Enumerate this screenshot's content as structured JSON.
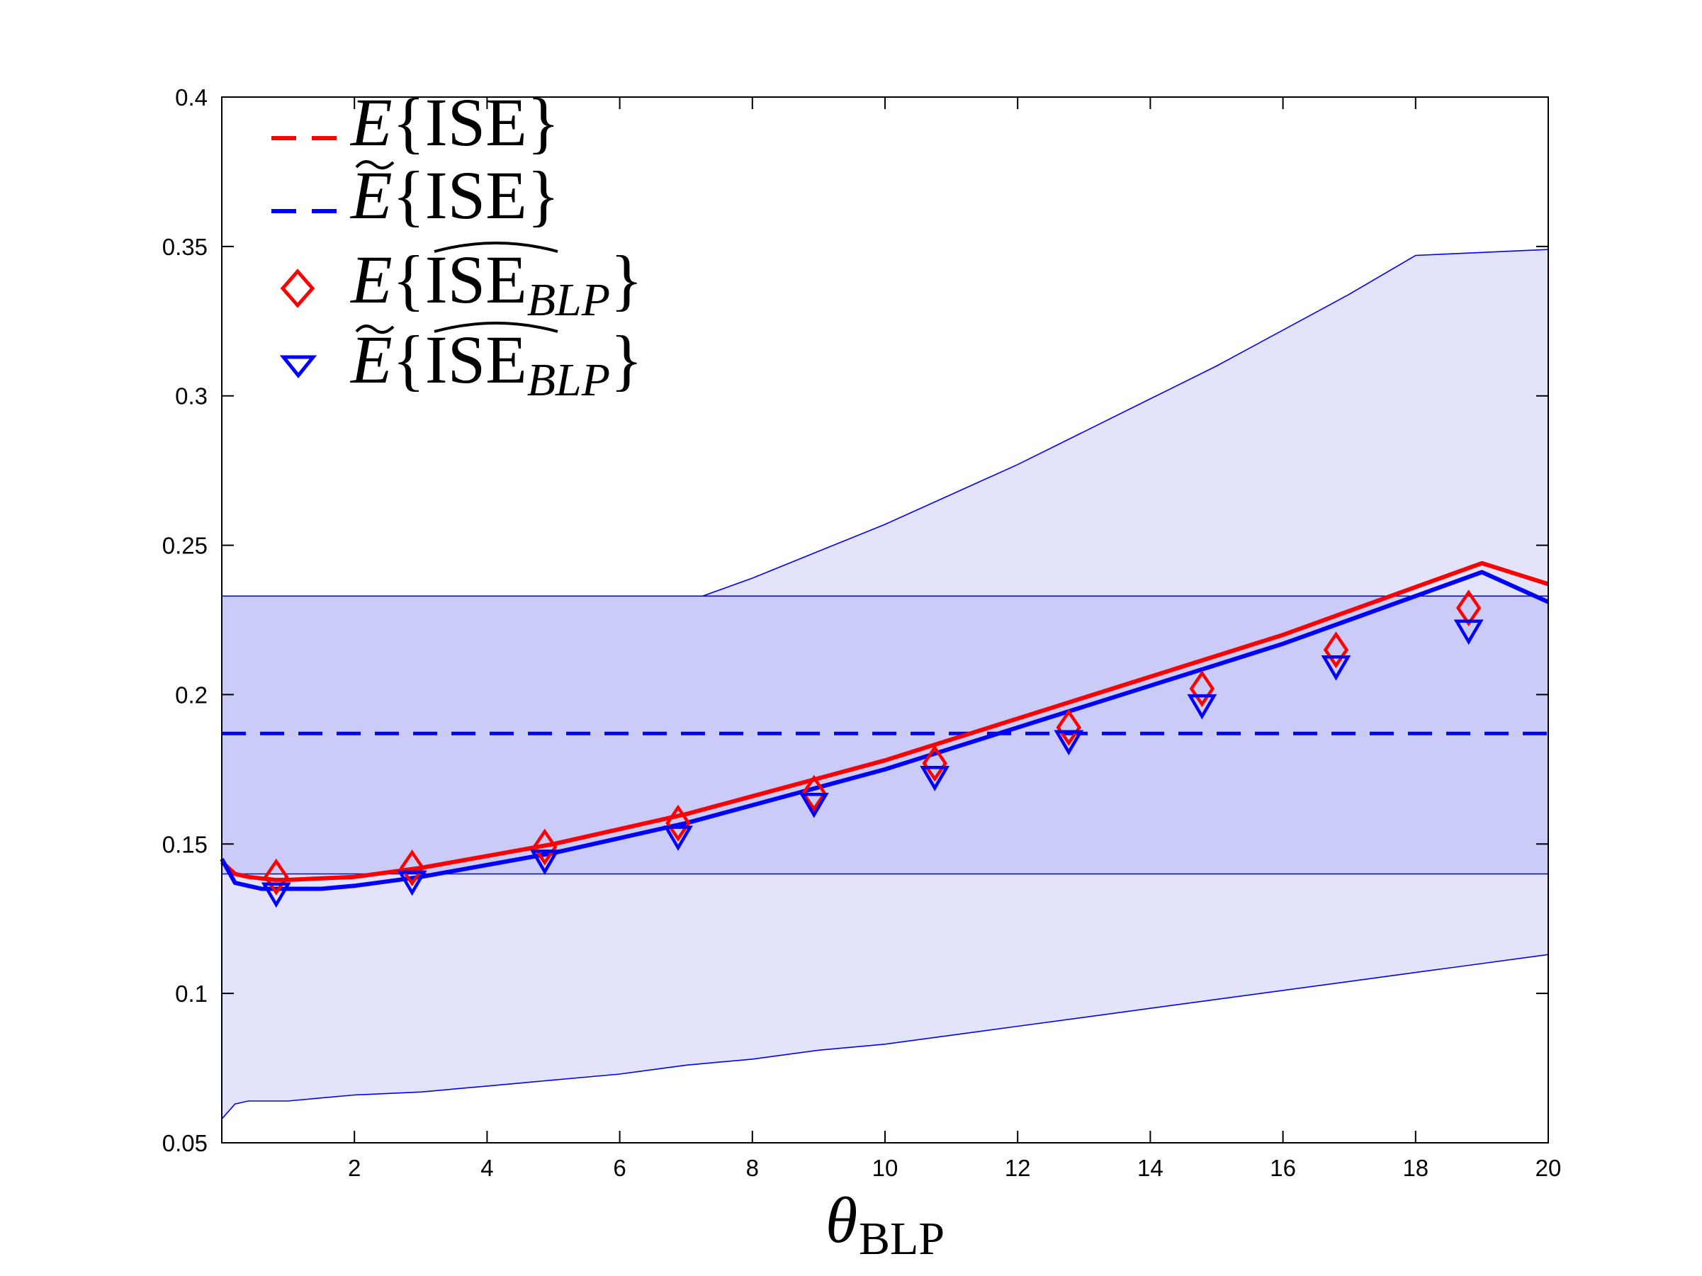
{
  "chart_data": {
    "type": "line",
    "title": "",
    "xlabel": {
      "symbol": "θ",
      "subscript": "BLP"
    },
    "ylabel": "",
    "xlim": [
      0,
      20
    ],
    "ylim": [
      0.05,
      0.4
    ],
    "xticks": [
      "2",
      "4",
      "6",
      "8",
      "10",
      "12",
      "14",
      "16",
      "18",
      "20"
    ],
    "yticks": [
      "0.05",
      "0.1",
      "0.15",
      "0.2",
      "0.25",
      "0.3",
      "0.35",
      "0.4"
    ],
    "grid": false,
    "legend_position": "top-left",
    "legend": [
      {
        "name": "E{ISE}",
        "style": "dashed-line",
        "color": "#ff0000",
        "letter": "E",
        "body": "ISE",
        "sub": "",
        "tilde": false,
        "hat": false
      },
      {
        "name": "Ẽ{ISE}",
        "style": "dashed-line",
        "color": "#0000ff",
        "letter": "E",
        "body": "ISE",
        "sub": "",
        "tilde": true,
        "hat": false
      },
      {
        "name": "E{ÎSE_BLP}",
        "style": "diamond-marker",
        "color": "#ff0000",
        "letter": "E",
        "body": "ISE",
        "sub": "BLP",
        "tilde": false,
        "hat": true
      },
      {
        "name": "Ẽ{ÎSE_BLP}",
        "style": "triangle-marker",
        "color": "#0000ff",
        "letter": "E",
        "body": "ISE",
        "sub": "BLP",
        "tilde": true,
        "hat": true
      }
    ],
    "bands": [
      {
        "name": "outer-band",
        "color": "#e3e3fb",
        "x": [
          0.0,
          0.2,
          0.4,
          0.6,
          0.8,
          1.0,
          1.5,
          2,
          3,
          4,
          5,
          6,
          7,
          8,
          9,
          10,
          11,
          12,
          13,
          14,
          15,
          16,
          17,
          18,
          19,
          20
        ],
        "upper": [
          0.233,
          0.21,
          0.207,
          0.206,
          0.205,
          0.205,
          0.205,
          0.206,
          0.209,
          0.213,
          0.218,
          0.224,
          0.231,
          0.239,
          0.248,
          0.257,
          0.267,
          0.277,
          0.288,
          0.299,
          0.31,
          0.322,
          0.334,
          0.347,
          0.348,
          0.349
        ],
        "lower": [
          0.058,
          0.063,
          0.064,
          0.064,
          0.064,
          0.064,
          0.065,
          0.066,
          0.067,
          0.069,
          0.071,
          0.073,
          0.076,
          0.078,
          0.081,
          0.083,
          0.086,
          0.089,
          0.092,
          0.095,
          0.098,
          0.101,
          0.104,
          0.107,
          0.11,
          0.113
        ]
      },
      {
        "name": "inner-band",
        "color": "#cbcbf7",
        "x": [
          0,
          20
        ],
        "upper": [
          0.233,
          0.233
        ],
        "lower": [
          0.14,
          0.14
        ]
      }
    ],
    "series": [
      {
        "name": "E{ISE}",
        "color": "#0000ff",
        "style": "dashed",
        "x": [
          0.0,
          20.0
        ],
        "y": [
          0.187,
          0.187
        ]
      },
      {
        "name": "E{ISE} curve",
        "color": "#ff0000",
        "style": "solid",
        "x": [
          0.0,
          0.2,
          0.4,
          0.6,
          0.8,
          1.0,
          1.5,
          2,
          3,
          4,
          5,
          6,
          7,
          8,
          9,
          10,
          11,
          12,
          13,
          14,
          15,
          16,
          17,
          18,
          19,
          20
        ],
        "y": [
          0.144,
          0.14,
          0.139,
          0.1385,
          0.138,
          0.138,
          0.1385,
          0.139,
          0.142,
          0.146,
          0.15,
          0.155,
          0.16,
          0.166,
          0.172,
          0.178,
          0.185,
          0.192,
          0.199,
          0.206,
          0.213,
          0.22,
          0.228,
          0.236,
          0.244,
          0.237
        ]
      },
      {
        "name": "Ẽ{ISE} curve",
        "color": "#0000ff",
        "style": "solid",
        "x": [
          0.0,
          0.2,
          0.4,
          0.6,
          0.8,
          1.0,
          1.5,
          2,
          3,
          4,
          5,
          6,
          7,
          8,
          9,
          10,
          11,
          12,
          13,
          14,
          15,
          16,
          17,
          18,
          19,
          20
        ],
        "y": [
          0.145,
          0.137,
          0.136,
          0.135,
          0.135,
          0.135,
          0.135,
          0.136,
          0.139,
          0.143,
          0.147,
          0.152,
          0.157,
          0.163,
          0.169,
          0.175,
          0.182,
          0.189,
          0.196,
          0.203,
          0.21,
          0.217,
          0.225,
          0.233,
          0.241,
          0.231
        ]
      }
    ],
    "markers": [
      {
        "name": "E{ÎSE_BLP}",
        "shape": "diamond",
        "color": "#ff0000",
        "x": [
          0.82,
          2.87,
          4.87,
          6.88,
          8.93,
          10.75,
          12.77,
          14.78,
          16.8,
          18.8
        ],
        "y": [
          0.139,
          0.142,
          0.149,
          0.157,
          0.167,
          0.177,
          0.189,
          0.202,
          0.215,
          0.229
        ]
      },
      {
        "name": "Ẽ{ÎSE_BLP}",
        "shape": "triangle-down",
        "color": "#0000ff",
        "x": [
          0.82,
          2.87,
          4.87,
          6.88,
          8.93,
          10.75,
          12.77,
          14.78,
          16.8,
          18.8
        ],
        "y": [
          0.134,
          0.138,
          0.145,
          0.153,
          0.164,
          0.173,
          0.185,
          0.197,
          0.21,
          0.222
        ]
      }
    ]
  }
}
